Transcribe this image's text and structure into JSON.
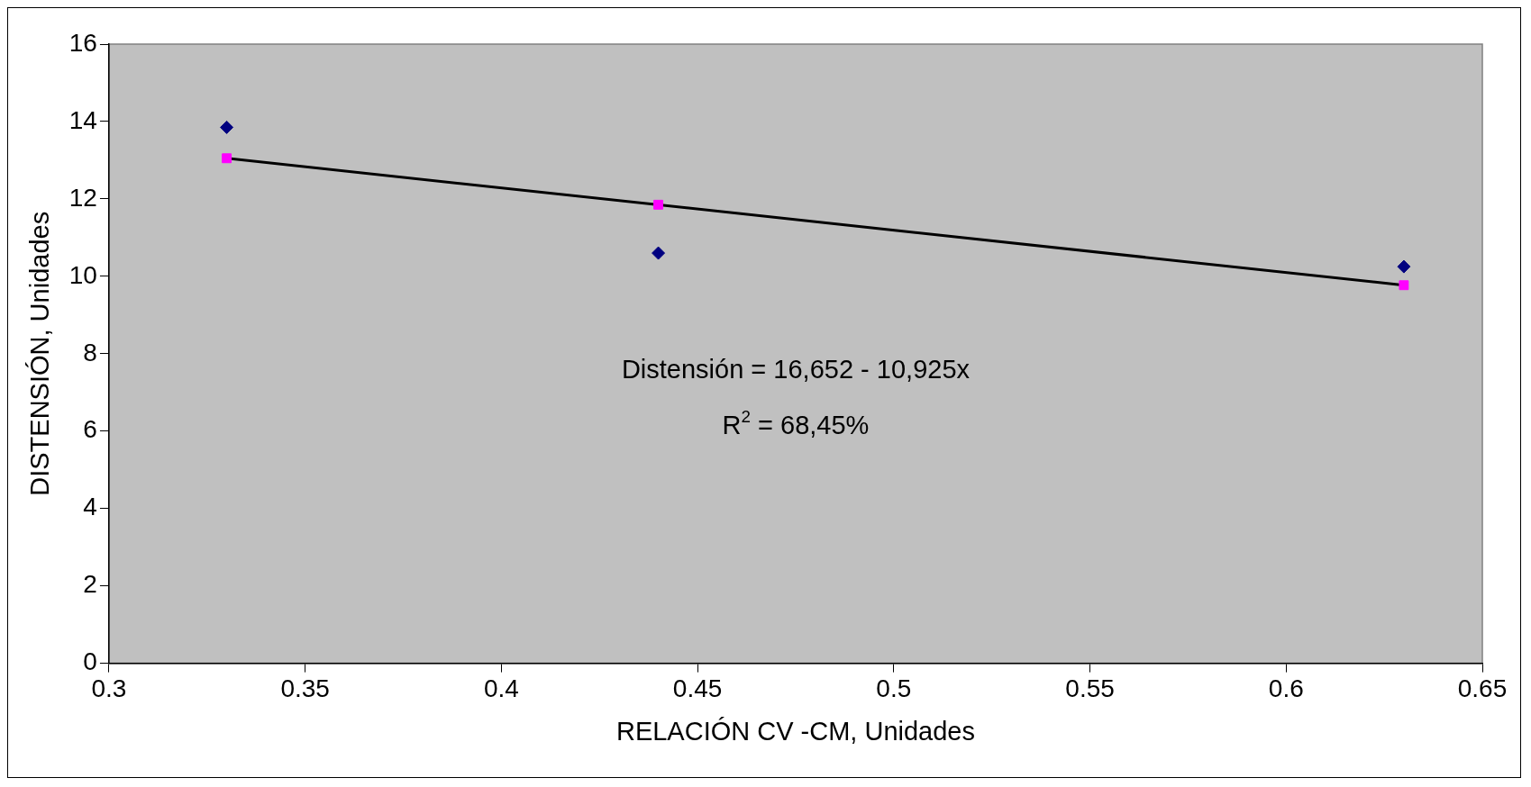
{
  "chart_data": {
    "type": "scatter",
    "xlabel": "RELACIÓN CV -CM, Unidades",
    "ylabel": "DISTENSIÓN, Unidades",
    "xlim": [
      0.3,
      0.65
    ],
    "xticks": [
      0.3,
      0.35,
      0.4,
      0.45,
      0.5,
      0.55,
      0.6,
      0.65
    ],
    "ylim": [
      0,
      16
    ],
    "yticks": [
      0,
      2,
      4,
      6,
      8,
      10,
      12,
      14,
      16
    ],
    "grid": false,
    "legend": false,
    "series": [
      {
        "marker": "diamond",
        "color": "#000080",
        "x": [
          0.33,
          0.44,
          0.63
        ],
        "values": [
          13.85,
          10.6,
          10.25
        ]
      },
      {
        "marker": "square",
        "color": "#ff00ff",
        "x": [
          0.33,
          0.44,
          0.63
        ],
        "values": [
          13.05,
          11.85,
          9.77
        ]
      },
      {
        "type": "line",
        "marker": "none",
        "color": "#000000",
        "x": [
          0.33,
          0.63
        ],
        "values": [
          13.05,
          9.77
        ]
      }
    ],
    "annotations": [
      "Distensión = 16,652 - 10,925x",
      "R$^{2}$ = 68,45%"
    ]
  }
}
